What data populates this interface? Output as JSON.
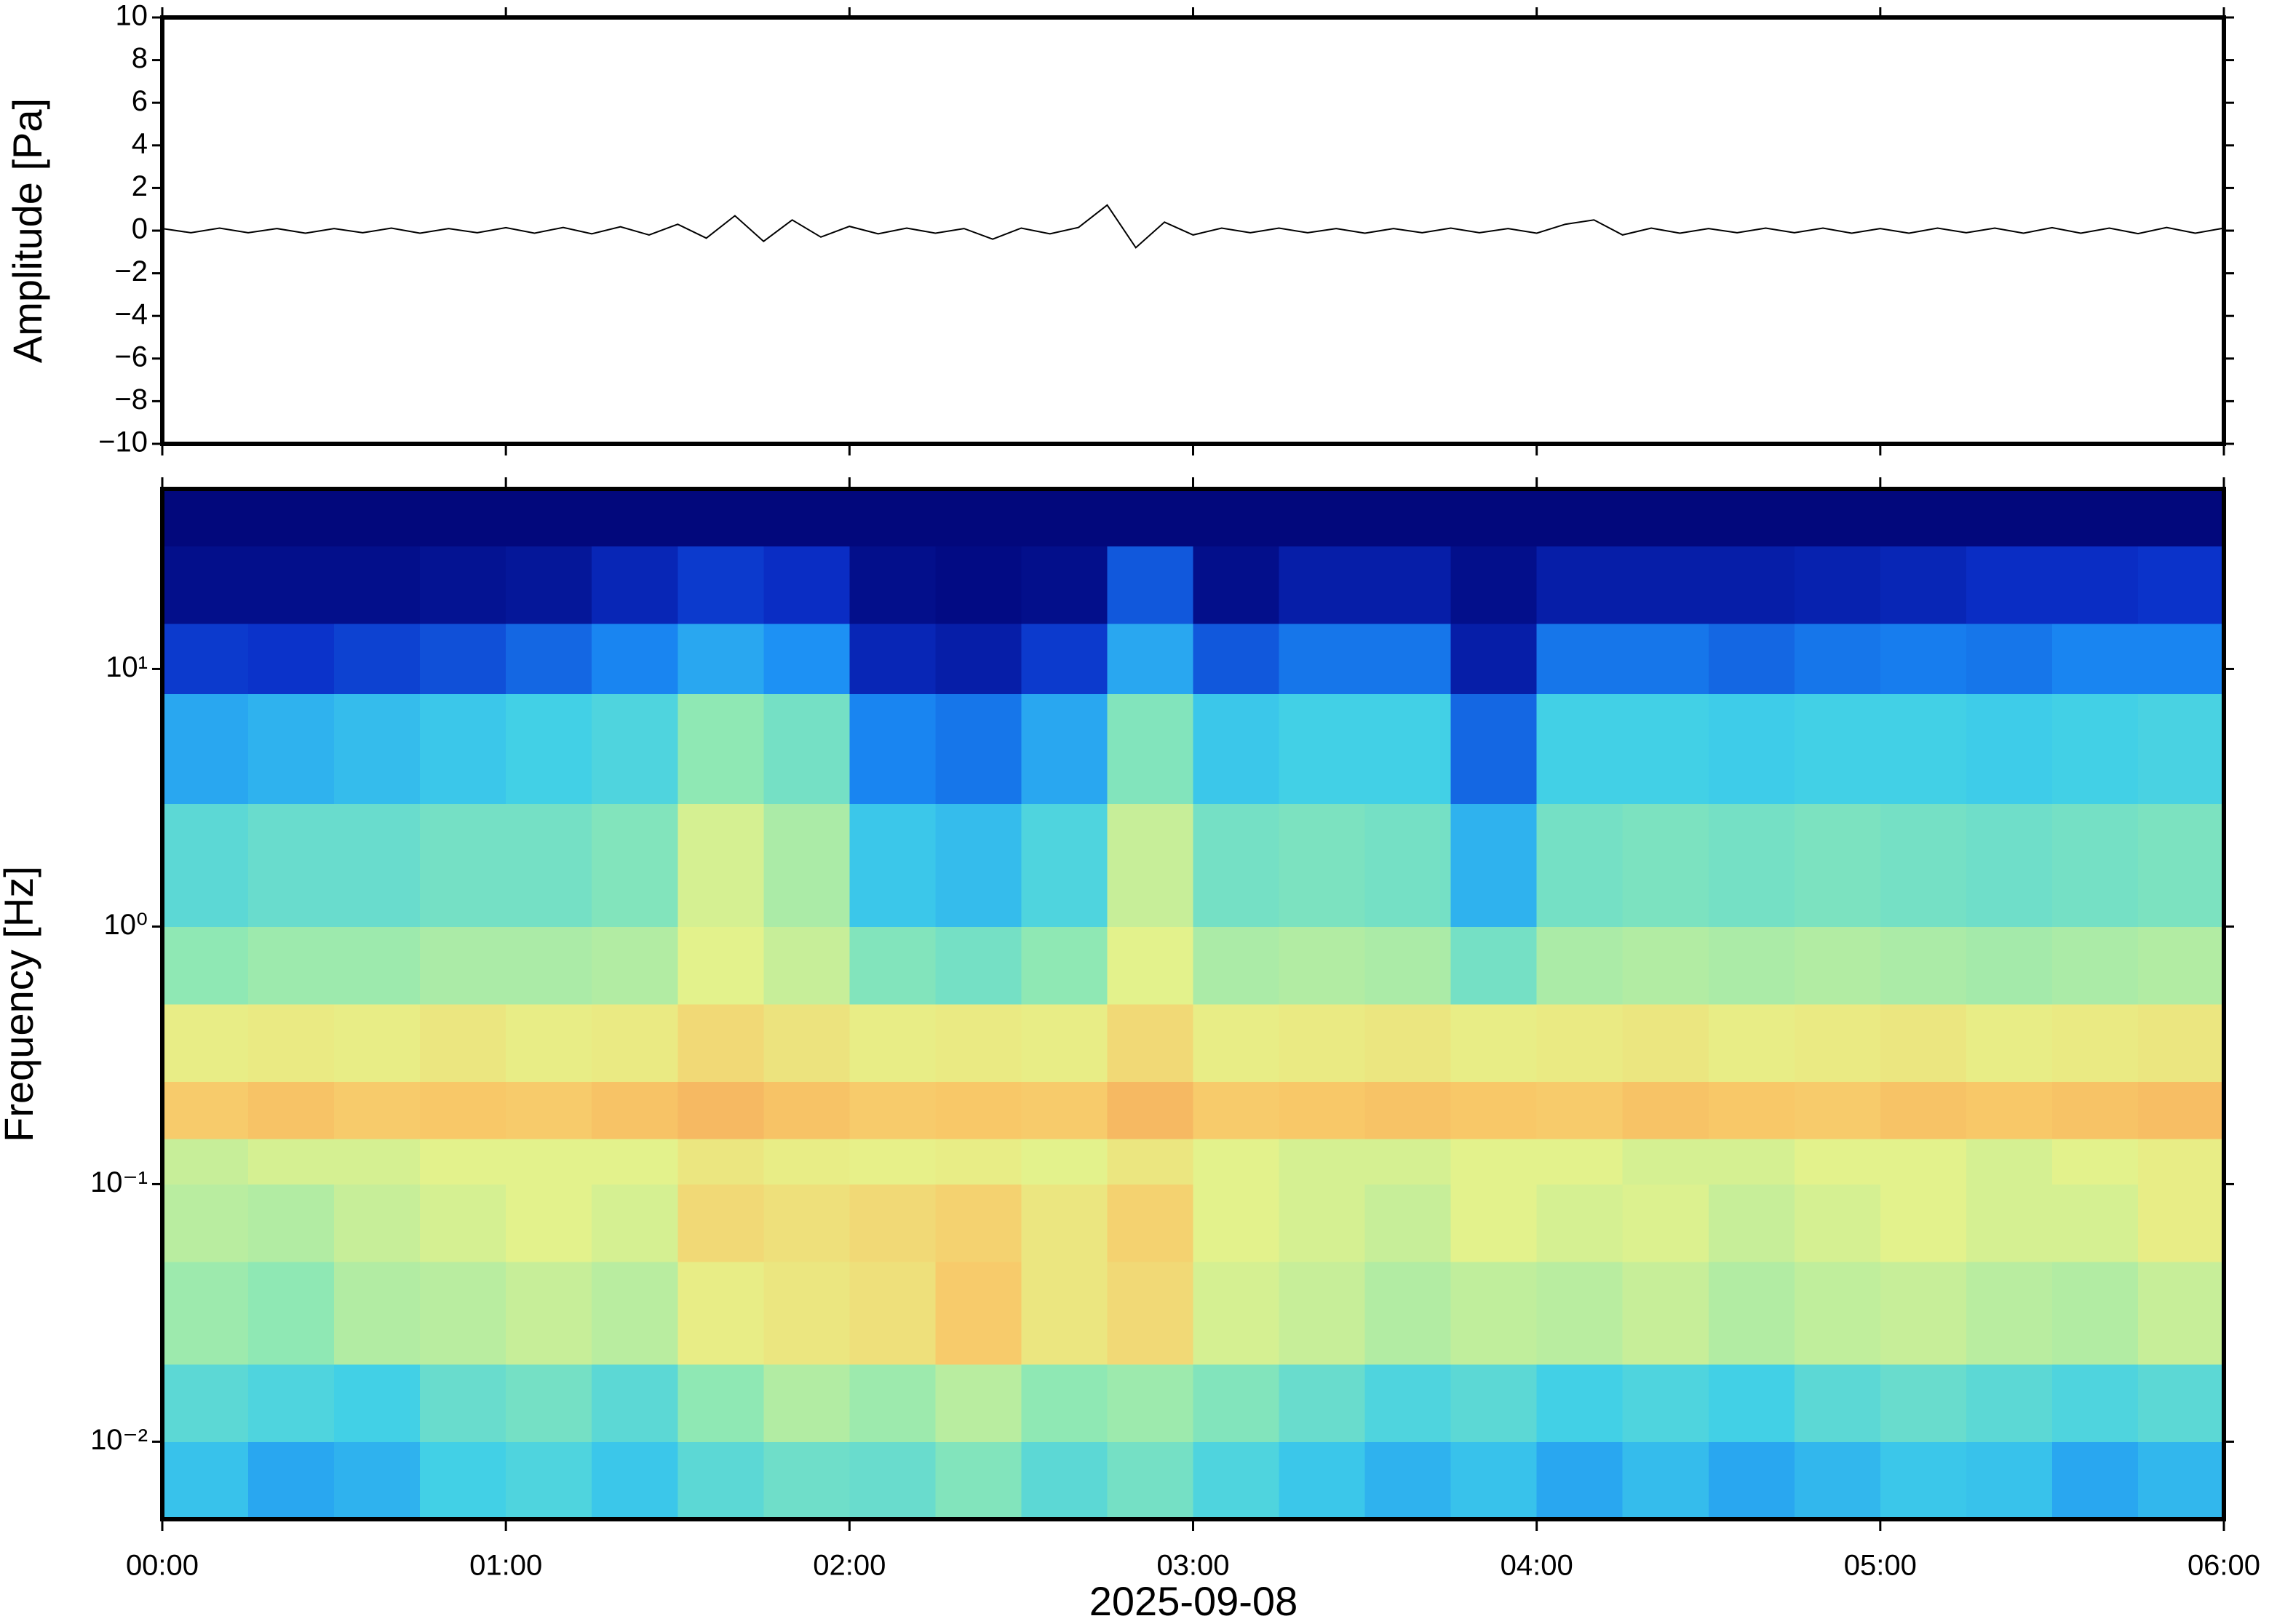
{
  "chart_data": [
    {
      "type": "line",
      "ylabel": "Amplitude [Pa]",
      "color": "#000000",
      "ylim": [
        -10,
        10
      ],
      "yticks": [
        {
          "value": -10,
          "label": "−10"
        },
        {
          "value": -8,
          "label": "−8"
        },
        {
          "value": -6,
          "label": "−6"
        },
        {
          "value": -4,
          "label": "−4"
        },
        {
          "value": -2,
          "label": "−2"
        },
        0,
        2,
        4,
        6,
        8,
        10
      ],
      "x": [
        0,
        5,
        10,
        15,
        20,
        25,
        30,
        35,
        40,
        45,
        50,
        55,
        60,
        65,
        70,
        75,
        80,
        85,
        90,
        95,
        100,
        105,
        110,
        115,
        120,
        125,
        130,
        135,
        140,
        145,
        150,
        155,
        160,
        165,
        170,
        175,
        180,
        185,
        190,
        195,
        200,
        205,
        210,
        215,
        220,
        225,
        230,
        235,
        240,
        245,
        250,
        255,
        260,
        265,
        270,
        275,
        280,
        285,
        290,
        295,
        300,
        305,
        310,
        315,
        320,
        325,
        330,
        335,
        340,
        345,
        350,
        355,
        360
      ],
      "values": [
        0.1,
        -0.1,
        0.12,
        -0.1,
        0.1,
        -0.12,
        0.1,
        -0.1,
        0.12,
        -0.12,
        0.1,
        -0.1,
        0.14,
        -0.12,
        0.15,
        -0.15,
        0.18,
        -0.2,
        0.3,
        -0.35,
        0.7,
        -0.5,
        0.5,
        -0.3,
        0.2,
        -0.15,
        0.12,
        -0.12,
        0.1,
        -0.4,
        0.12,
        -0.15,
        0.15,
        1.2,
        -0.8,
        0.4,
        -0.2,
        0.12,
        -0.1,
        0.12,
        -0.1,
        0.1,
        -0.12,
        0.1,
        -0.1,
        0.12,
        -0.1,
        0.1,
        -0.12,
        0.3,
        0.5,
        -0.2,
        0.12,
        -0.12,
        0.1,
        -0.1,
        0.12,
        -0.1,
        0.12,
        -0.12,
        0.1,
        -0.12,
        0.12,
        -0.1,
        0.12,
        -0.12,
        0.14,
        -0.12,
        0.12,
        -0.14,
        0.15,
        -0.12,
        0.12
      ]
    },
    {
      "type": "heatmap",
      "ylabel": "Frequency [Hz]",
      "xlabel": "2025-09-08",
      "xlim": [
        0,
        360
      ],
      "xticks": [
        {
          "value": 0,
          "label": "00:00"
        },
        {
          "value": 60,
          "label": "01:00"
        },
        {
          "value": 120,
          "label": "02:00"
        },
        {
          "value": 180,
          "label": "03:00"
        },
        {
          "value": 240,
          "label": "04:00"
        },
        {
          "value": 300,
          "label": "05:00"
        },
        {
          "value": 360,
          "label": "06:00"
        }
      ],
      "ylim": [
        0.005,
        50
      ],
      "log_y": true,
      "yticks": [
        {
          "value": 0.01,
          "label": "10⁻²"
        },
        {
          "value": 0.1,
          "label": "10⁻¹"
        },
        {
          "value": 1,
          "label": "10⁰"
        },
        {
          "value": 10,
          "label": "10¹"
        }
      ],
      "colormap": [
        "#00006e",
        "#0a2fc8",
        "#1a8cf5",
        "#3fcfe8",
        "#8fe8b4",
        "#e6f28a",
        "#f8c868",
        "#f08a50",
        "#d8402a"
      ],
      "zlim": [
        0,
        1
      ],
      "x_edges": [
        0,
        15,
        30,
        45,
        60,
        75,
        90,
        105,
        120,
        135,
        150,
        165,
        180,
        195,
        210,
        225,
        240,
        255,
        270,
        285,
        300,
        315,
        330,
        345,
        360
      ],
      "y_edges": [
        0.005,
        0.01,
        0.02,
        0.05,
        0.1,
        0.15,
        0.25,
        0.5,
        1,
        3,
        8,
        15,
        30,
        50
      ],
      "z": [
        [
          0.35,
          0.3,
          0.32,
          0.38,
          0.4,
          0.36,
          0.42,
          0.45,
          0.44,
          0.48,
          0.42,
          0.46,
          0.4,
          0.36,
          0.32,
          0.35,
          0.3,
          0.34,
          0.3,
          0.33,
          0.36,
          0.35,
          0.3,
          0.33
        ],
        [
          0.42,
          0.4,
          0.38,
          0.44,
          0.46,
          0.42,
          0.5,
          0.55,
          0.52,
          0.56,
          0.5,
          0.52,
          0.48,
          0.44,
          0.4,
          0.42,
          0.38,
          0.4,
          0.38,
          0.42,
          0.44,
          0.42,
          0.4,
          0.42
        ],
        [
          0.52,
          0.5,
          0.55,
          0.56,
          0.58,
          0.56,
          0.64,
          0.66,
          0.68,
          0.74,
          0.66,
          0.7,
          0.6,
          0.58,
          0.55,
          0.57,
          0.56,
          0.58,
          0.55,
          0.57,
          0.58,
          0.56,
          0.55,
          0.58
        ],
        [
          0.56,
          0.55,
          0.58,
          0.6,
          0.62,
          0.6,
          0.7,
          0.68,
          0.7,
          0.72,
          0.66,
          0.72,
          0.62,
          0.6,
          0.58,
          0.62,
          0.6,
          0.61,
          0.58,
          0.6,
          0.62,
          0.6,
          0.6,
          0.64
        ],
        [
          0.58,
          0.6,
          0.6,
          0.62,
          0.62,
          0.62,
          0.66,
          0.64,
          0.63,
          0.64,
          0.62,
          0.66,
          0.62,
          0.6,
          0.6,
          0.62,
          0.62,
          0.6,
          0.6,
          0.62,
          0.62,
          0.6,
          0.62,
          0.64
        ],
        [
          0.74,
          0.76,
          0.74,
          0.75,
          0.74,
          0.76,
          0.78,
          0.76,
          0.74,
          0.75,
          0.74,
          0.78,
          0.74,
          0.75,
          0.76,
          0.75,
          0.74,
          0.76,
          0.75,
          0.74,
          0.76,
          0.75,
          0.76,
          0.77
        ],
        [
          0.64,
          0.65,
          0.64,
          0.66,
          0.64,
          0.65,
          0.7,
          0.67,
          0.64,
          0.65,
          0.64,
          0.7,
          0.64,
          0.65,
          0.66,
          0.64,
          0.65,
          0.66,
          0.64,
          0.65,
          0.66,
          0.64,
          0.65,
          0.66
        ],
        [
          0.5,
          0.52,
          0.52,
          0.54,
          0.54,
          0.55,
          0.62,
          0.58,
          0.48,
          0.46,
          0.5,
          0.62,
          0.54,
          0.55,
          0.54,
          0.46,
          0.54,
          0.55,
          0.54,
          0.55,
          0.54,
          0.53,
          0.54,
          0.55
        ],
        [
          0.42,
          0.44,
          0.44,
          0.46,
          0.46,
          0.48,
          0.6,
          0.54,
          0.36,
          0.34,
          0.4,
          0.58,
          0.46,
          0.47,
          0.46,
          0.32,
          0.46,
          0.47,
          0.46,
          0.47,
          0.46,
          0.45,
          0.46,
          0.47
        ],
        [
          0.3,
          0.32,
          0.34,
          0.36,
          0.38,
          0.4,
          0.5,
          0.46,
          0.24,
          0.22,
          0.3,
          0.48,
          0.36,
          0.38,
          0.38,
          0.2,
          0.38,
          0.38,
          0.37,
          0.38,
          0.38,
          0.37,
          0.38,
          0.39
        ],
        [
          0.14,
          0.13,
          0.15,
          0.17,
          0.2,
          0.24,
          0.3,
          0.26,
          0.1,
          0.08,
          0.14,
          0.3,
          0.18,
          0.22,
          0.22,
          0.08,
          0.22,
          0.22,
          0.2,
          0.22,
          0.23,
          0.22,
          0.24,
          0.24
        ],
        [
          0.04,
          0.04,
          0.04,
          0.05,
          0.06,
          0.1,
          0.14,
          0.12,
          0.04,
          0.03,
          0.04,
          0.18,
          0.04,
          0.08,
          0.08,
          0.04,
          0.08,
          0.08,
          0.08,
          0.09,
          0.1,
          0.12,
          0.12,
          0.13
        ],
        [
          0.02,
          0.02,
          0.02,
          0.02,
          0.02,
          0.02,
          0.02,
          0.02,
          0.02,
          0.02,
          0.02,
          0.02,
          0.02,
          0.02,
          0.02,
          0.02,
          0.02,
          0.02,
          0.02,
          0.02,
          0.02,
          0.02,
          0.02,
          0.02
        ]
      ]
    }
  ]
}
